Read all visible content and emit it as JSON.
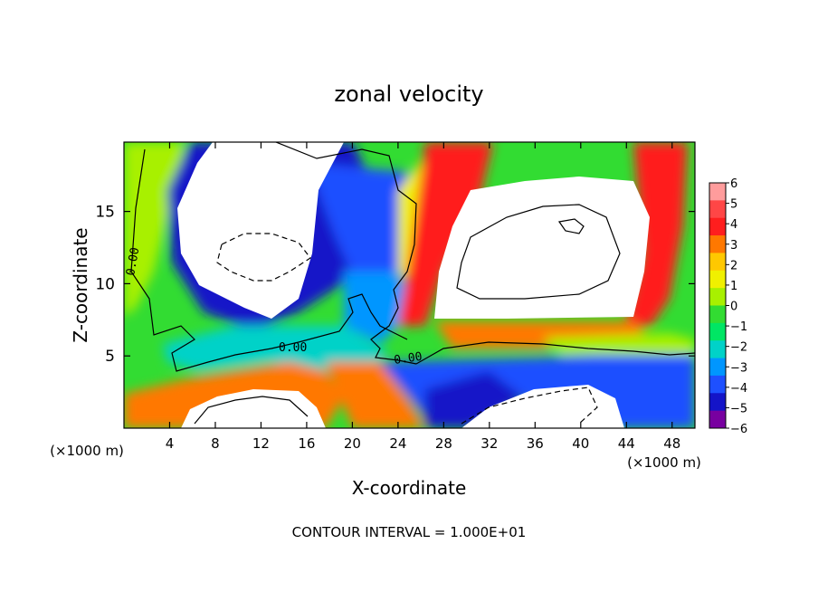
{
  "chart_data": {
    "type": "heatmap",
    "title": "zonal velocity",
    "xlabel": "X-coordinate",
    "ylabel": "Z-coordinate",
    "x_unit": "(×1000 m)",
    "x_ticks": [
      4,
      8,
      12,
      16,
      20,
      24,
      28,
      32,
      36,
      40,
      44,
      48
    ],
    "y_ticks": [
      5,
      10,
      15
    ],
    "xlim": [
      0,
      50
    ],
    "ylim": [
      0,
      19.8
    ],
    "colorbar": {
      "ticks": [
        6,
        5,
        4,
        3,
        2,
        1,
        0,
        -1,
        -2,
        -3,
        -4,
        -5,
        -6
      ],
      "colors": [
        "#ff9c9c",
        "#ff4646",
        "#ff1e1e",
        "#ff7800",
        "#ffc800",
        "#f0f000",
        "#a8f000",
        "#32dc32",
        "#00e664",
        "#00d2c8",
        "#0096ff",
        "#1e50ff",
        "#1414c8",
        "#7800a0"
      ]
    },
    "contour_labels": [
      "0.00",
      "0.00",
      "0.00"
    ],
    "footer": "CONTOUR INTERVAL = 1.000E+01"
  }
}
